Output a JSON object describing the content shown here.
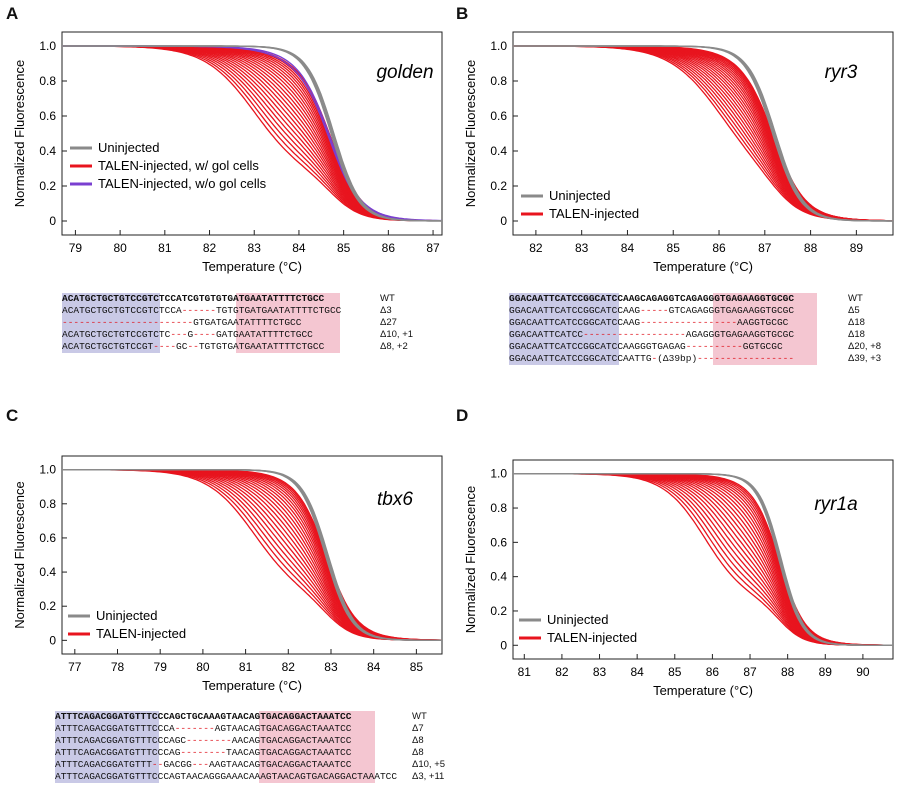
{
  "panels": [
    {
      "letter": "A",
      "gene": "golden",
      "ylabel": "Normalized Fluorescence",
      "xlabel": "Temperature (°C)",
      "xticks": [
        "79",
        "80",
        "81",
        "82",
        "83",
        "84",
        "85",
        "86",
        "87"
      ],
      "yticks": [
        "0",
        "0.2",
        "0.4",
        "0.6",
        "0.8",
        "1.0"
      ],
      "legend": [
        "Uninjected",
        "TALEN-injected, w/ gol cells",
        "TALEN-injected, w/o gol cells"
      ],
      "seq_rows": [
        {
          "seq": "ACATGCTGCTGTCCGTCTCCATCGTGTGTGATGAATATTTTCTGCC",
          "label": "WT"
        },
        {
          "seq": "ACATGCTGCTGTCCGTCTCCA------TGTGTGATGAATATTTTCTGCC",
          "label": "Δ3"
        },
        {
          "seq": "-----------------------GTGATGAATATTTTCTGCC",
          "label": "Δ27"
        },
        {
          "seq": "ACATGCTGCTGTCCGTCTC---G----GATGAATATTTTCTGCC",
          "label": "Δ10, +1"
        },
        {
          "seq": "ACATGCTGCTGTCCGT----GC--TGTGTGATGAATATTTTCTGCC",
          "label": "Δ8, +2"
        }
      ]
    },
    {
      "letter": "B",
      "gene": "ryr3",
      "ylabel": "Normalized Fluorescence",
      "xlabel": "Temperature (°C)",
      "xticks": [
        "82",
        "83",
        "84",
        "85",
        "86",
        "87",
        "88",
        "89"
      ],
      "yticks": [
        "0",
        "0.2",
        "0.4",
        "0.6",
        "0.8",
        "1.0"
      ],
      "legend": [
        "Uninjected",
        "TALEN-injected"
      ],
      "seq_rows": [
        {
          "seq": "GGACAATTCATCCGGCATCCAAGCAGAGGTCAGAGGGTGAGAAGGTGCGC",
          "label": "WT"
        },
        {
          "seq": "GGACAATTCATCCGGCATCCAAG-----GTCAGAGGGTGAGAAGGTGCGC",
          "label": "Δ5"
        },
        {
          "seq": "GGACAATTCATCCGGCATCCAAG-----------------AAGGTGCGC",
          "label": "Δ18"
        },
        {
          "seq": "GGACAATTCATCC------------------AGAGGGTGAGAAGGTGCGC",
          "label": "Δ18"
        },
        {
          "seq": "GGACAATTCATCCGGCATCCAAGGGTGAGAG----------GGTGCGC",
          "label": "Δ20, +8"
        },
        {
          "seq": "GGACAATTCATCCGGCATCCAATTG-(Δ39bp)-----------------",
          "label": "Δ39, +3"
        }
      ]
    },
    {
      "letter": "C",
      "gene": "tbx6",
      "ylabel": "Normalized Fluorescence",
      "xlabel": "Temperature (°C)",
      "xticks": [
        "77",
        "78",
        "79",
        "80",
        "81",
        "82",
        "83",
        "84",
        "85"
      ],
      "yticks": [
        "0",
        "0.2",
        "0.4",
        "0.6",
        "0.8",
        "1.0"
      ],
      "legend": [
        "Uninjected",
        "TALEN-injected"
      ],
      "seq_rows": [
        {
          "seq": "ATTTCAGACGGATGTTTCCCAGCTGCAAAGTAACAGTGACAGGACTAAATCC",
          "label": "WT"
        },
        {
          "seq": "ATTTCAGACGGATGTTTCCCA-------AGTAACAGTGACAGGACTAAATCC",
          "label": "Δ7"
        },
        {
          "seq": "ATTTCAGACGGATGTTTCCCAGC--------AACAGTGACAGGACTAAATCC",
          "label": "Δ8"
        },
        {
          "seq": "ATTTCAGACGGATGTTTCCCAG--------TAACAGTGACAGGACTAAATCC",
          "label": "Δ8"
        },
        {
          "seq": "ATTTCAGACGGATGTTT--GACGG---AAGTAACAGTGACAGGACTAAATCC",
          "label": "Δ10, +5"
        },
        {
          "seq": "ATTTCAGACGGATGTTTCCCAGTAACAGGGAAACAAAGTAACAGTGACAGGACTAAATCC",
          "label": "Δ3, +11"
        }
      ]
    },
    {
      "letter": "D",
      "gene": "ryr1a",
      "ylabel": "Normalized Fluorescence",
      "xlabel": "Temperature (°C)",
      "xticks": [
        "81",
        "82",
        "83",
        "84",
        "85",
        "86",
        "87",
        "88",
        "89",
        "90"
      ],
      "yticks": [
        "0",
        "0.2",
        "0.4",
        "0.6",
        "0.8",
        "1.0"
      ],
      "legend": [
        "Uninjected",
        "TALEN-injected"
      ]
    }
  ],
  "chart_data": [
    {
      "type": "line",
      "gene": "golden",
      "xlim": [
        78.7,
        87.2
      ],
      "ylim": [
        -0.08,
        1.08
      ],
      "uninjected_Tm": 84.75,
      "injected_Tm_range": [
        83.0,
        84.3
      ],
      "series": [
        {
          "name": "Uninjected",
          "color": "#8a8a8a"
        },
        {
          "name": "TALEN-injected, w/ gol cells",
          "color": "#e8141e"
        },
        {
          "name": "TALEN-injected, w/o gol cells",
          "color": "#7a3fd0"
        }
      ]
    },
    {
      "type": "line",
      "gene": "ryr3",
      "xlim": [
        81.5,
        89.8
      ],
      "ylim": [
        -0.08,
        1.08
      ],
      "uninjected_Tm": 87.2,
      "injected_Tm_range": [
        86.0,
        87.0
      ],
      "series": [
        {
          "name": "Uninjected",
          "color": "#8a8a8a"
        },
        {
          "name": "TALEN-injected",
          "color": "#e8141e"
        }
      ]
    },
    {
      "type": "line",
      "gene": "tbx6",
      "xlim": [
        76.7,
        85.6
      ],
      "ylim": [
        -0.08,
        1.08
      ],
      "uninjected_Tm": 82.9,
      "injected_Tm_range": [
        81.2,
        82.8
      ],
      "series": [
        {
          "name": "Uninjected",
          "color": "#8a8a8a"
        },
        {
          "name": "TALEN-injected",
          "color": "#e8141e"
        }
      ]
    },
    {
      "type": "line",
      "gene": "ryr1a",
      "xlim": [
        80.7,
        90.8
      ],
      "ylim": [
        -0.08,
        1.08
      ],
      "uninjected_Tm": 87.8,
      "injected_Tm_range": [
        85.8,
        87.6
      ],
      "series": [
        {
          "name": "Uninjected",
          "color": "#8a8a8a"
        },
        {
          "name": "TALEN-injected",
          "color": "#e8141e"
        }
      ]
    }
  ]
}
